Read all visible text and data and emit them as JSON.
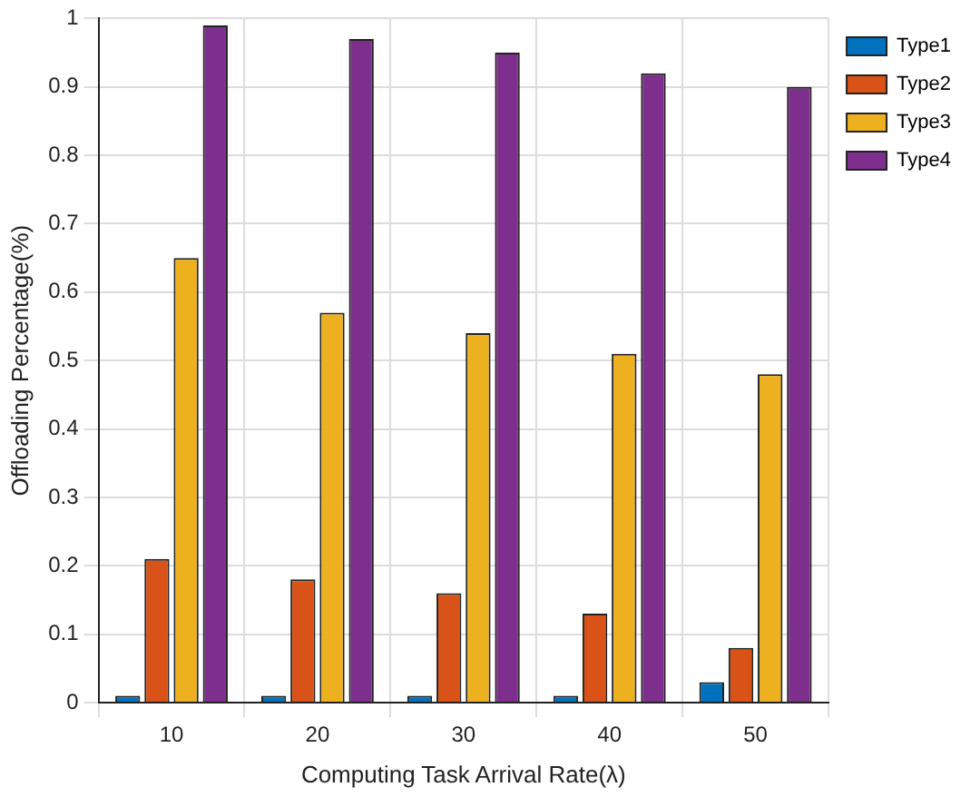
{
  "chart_data": {
    "type": "bar",
    "xlabel": "Computing Task Arrival Rate(λ)",
    "ylabel": "Offloading Percentage(%)",
    "categories": [
      "10",
      "20",
      "30",
      "40",
      "50"
    ],
    "series": [
      {
        "name": "Type1",
        "color": "#0072bd",
        "values": [
          0.01,
          0.01,
          0.01,
          0.01,
          0.03
        ]
      },
      {
        "name": "Type2",
        "color": "#d95319",
        "values": [
          0.21,
          0.18,
          0.16,
          0.13,
          0.08
        ]
      },
      {
        "name": "Type3",
        "color": "#edb120",
        "values": [
          0.65,
          0.57,
          0.54,
          0.51,
          0.48
        ]
      },
      {
        "name": "Type4",
        "color": "#7e2f8e",
        "values": [
          0.99,
          0.97,
          0.95,
          0.92,
          0.9
        ]
      }
    ],
    "ylim": [
      0,
      1
    ],
    "yticks": [
      0,
      0.1,
      0.2,
      0.3,
      0.4,
      0.5,
      0.6,
      0.7,
      0.8,
      0.9,
      1
    ],
    "grid": true,
    "legend": "right"
  }
}
